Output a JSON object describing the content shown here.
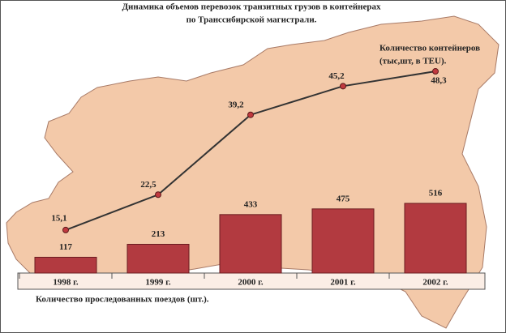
{
  "chart_data": {
    "type": "bar_line",
    "title": [
      "Динамика объемов перевозок транзитных грузов в контейнерах",
      "по Транссибирской магистрали."
    ],
    "categories": [
      "1998 г.",
      "1999 г.",
      "2000 г.",
      "2001 г.",
      "2002 г."
    ],
    "ylim": [
      0,
      600
    ],
    "y2lim": [
      0,
      60
    ],
    "series": [
      {
        "name": "Количество проследованных поездов (шт.).",
        "type": "bar",
        "color": "#b23a40",
        "values": [
          117,
          213,
          433,
          475,
          516
        ]
      },
      {
        "name": [
          "Количество контейнеров",
          "(тыс,шт, в TEU)."
        ],
        "type": "line",
        "axis": "y2",
        "color": "#333333",
        "marker_color": "#c0393f",
        "values": [
          15.1,
          22.5,
          39.2,
          45.2,
          48.3
        ],
        "value_labels": [
          "15,1",
          "22,5",
          "39,2",
          "45,2",
          "48,3"
        ]
      }
    ]
  }
}
